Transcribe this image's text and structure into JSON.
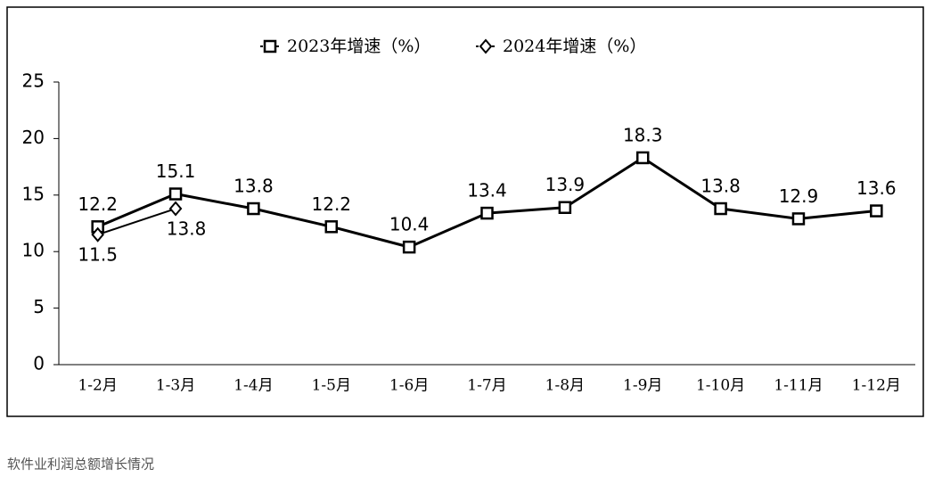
{
  "chart_data": {
    "type": "line",
    "categories": [
      "1-2月",
      "1-3月",
      "1-4月",
      "1-5月",
      "1-6月",
      "1-7月",
      "1-8月",
      "1-9月",
      "1-10月",
      "1-11月",
      "1-12月"
    ],
    "series": [
      {
        "name": "2023年增速（%）",
        "color": "#000000",
        "marker": "square",
        "values": [
          12.2,
          15.1,
          13.8,
          12.2,
          10.4,
          13.4,
          13.9,
          18.3,
          13.8,
          12.9,
          13.6
        ]
      },
      {
        "name": "2024年增速（%）",
        "color": "#000000",
        "marker": "diamond",
        "values": [
          11.5,
          13.8,
          null,
          null,
          null,
          null,
          null,
          null,
          null,
          null,
          null
        ]
      }
    ],
    "ylim": [
      0,
      25
    ],
    "yticks": [
      0,
      5,
      10,
      15,
      20,
      25
    ],
    "grid": false,
    "legend": "top",
    "caption": "软件业利润总额增长情况"
  }
}
